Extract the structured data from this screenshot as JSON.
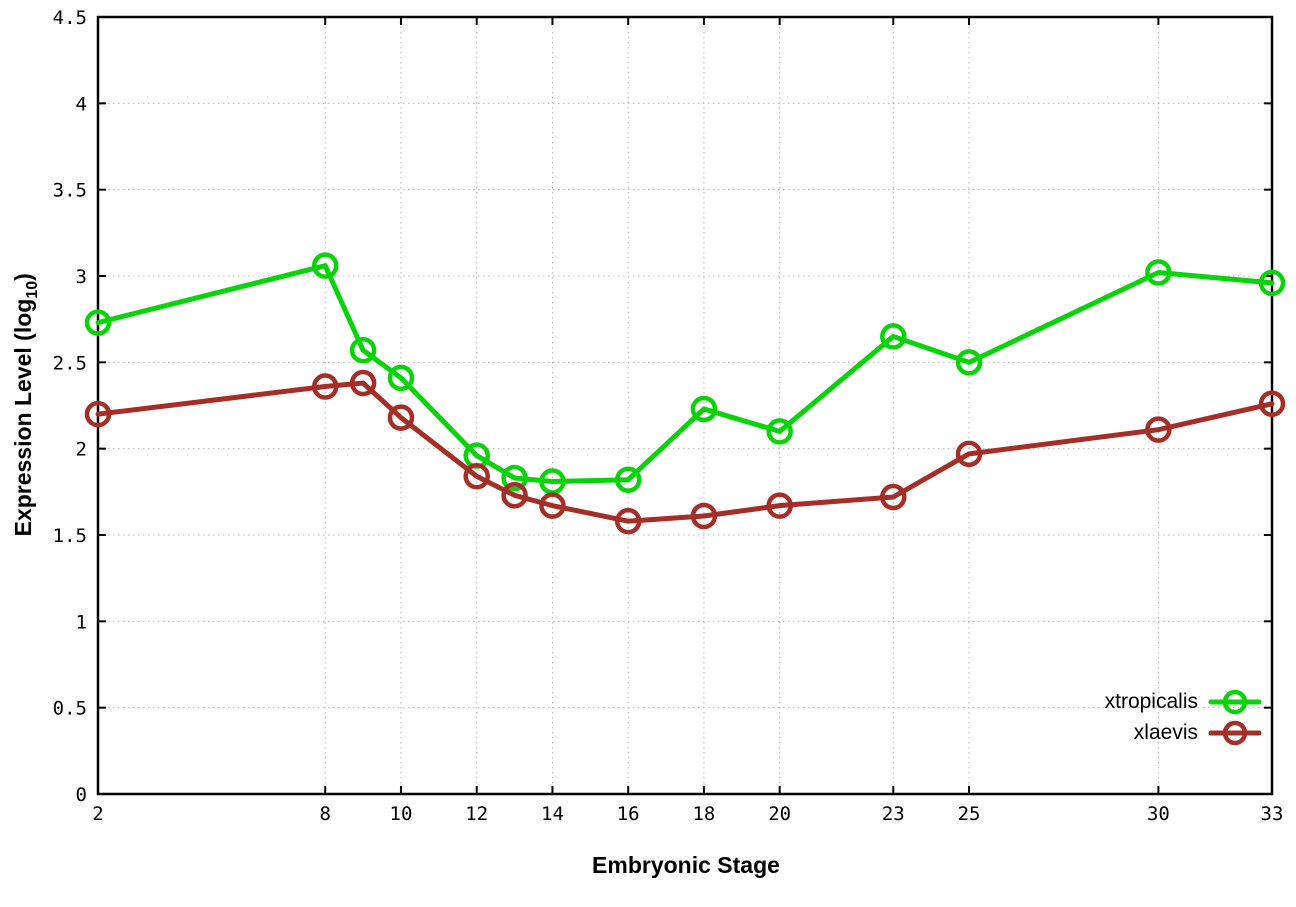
{
  "chart_data": {
    "type": "line",
    "title": "",
    "xlabel": "Embryonic Stage",
    "ylabel": "Expression Level (log10)",
    "ylabel_rich": {
      "prefix": "Expression Level (log",
      "sub": "10",
      "suffix": ")"
    },
    "x": [
      2,
      8,
      9,
      10,
      12,
      13,
      14,
      16,
      18,
      20,
      23,
      25,
      30,
      33
    ],
    "series": [
      {
        "name": "xtropicalis",
        "color": "#0bd30b",
        "values": [
          2.73,
          3.06,
          2.57,
          2.41,
          1.96,
          1.83,
          1.81,
          1.82,
          2.23,
          2.1,
          2.65,
          2.5,
          3.02,
          2.96
        ]
      },
      {
        "name": "xlaevis",
        "color": "#a52e28",
        "values": [
          2.2,
          2.36,
          2.38,
          2.18,
          1.84,
          1.73,
          1.67,
          1.58,
          1.61,
          1.67,
          1.72,
          1.97,
          2.11,
          2.26
        ]
      }
    ],
    "xlim": [
      2,
      33
    ],
    "ylim": [
      0,
      4.5
    ],
    "xticks": [
      2,
      8,
      10,
      12,
      14,
      16,
      18,
      20,
      23,
      25,
      30,
      33
    ],
    "yticks": [
      0,
      0.5,
      1,
      1.5,
      2,
      2.5,
      3,
      3.5,
      4,
      4.5
    ],
    "ytick_labels": [
      "0",
      "0.5",
      "1",
      "1.5",
      "2",
      "2.5",
      "3",
      "3.5",
      "4",
      "4.5"
    ],
    "grid": true,
    "grid_color": "#b8b8b8",
    "axis_color": "#000000",
    "marker": "open-circle",
    "legend_position": "bottom-right"
  }
}
